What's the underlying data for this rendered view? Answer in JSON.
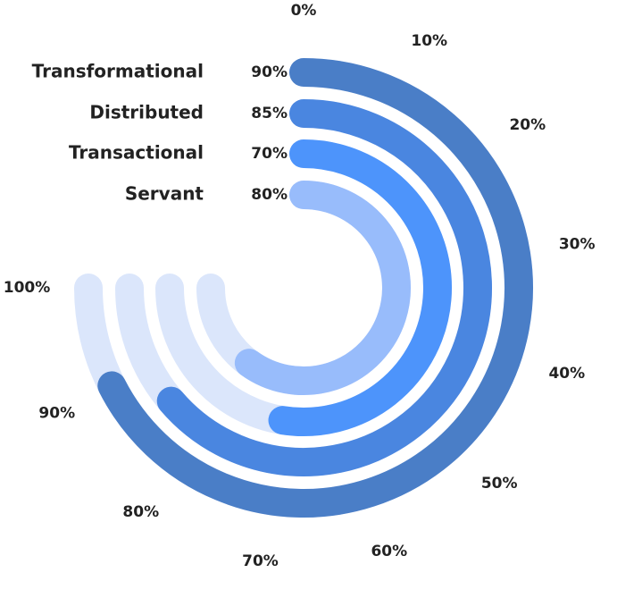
{
  "chart_data": {
    "type": "radial-bar",
    "categories": [
      "Transformational",
      "Distributed",
      "Transactional",
      "Servant"
    ],
    "values": [
      90,
      85,
      70,
      80
    ],
    "value_labels": [
      "90%",
      "85%",
      "70%",
      "80%"
    ],
    "colors": [
      "#4a7ec7",
      "#4a86e0",
      "#4d94fb",
      "#98bcfb"
    ],
    "track_color": "#dbe6fb",
    "xlim": [
      0,
      100
    ],
    "xticks": [
      {
        "value": 0,
        "label": "0%"
      },
      {
        "value": 10,
        "label": "10%"
      },
      {
        "value": 20,
        "label": "20%"
      },
      {
        "value": 30,
        "label": "30%"
      },
      {
        "value": 40,
        "label": "40%"
      },
      {
        "value": 50,
        "label": "50%"
      },
      {
        "value": 60,
        "label": "60%"
      },
      {
        "value": 70,
        "label": "70%"
      },
      {
        "value": 80,
        "label": "80%"
      },
      {
        "value": 90,
        "label": "90%"
      },
      {
        "value": 100,
        "label": "100%"
      }
    ]
  }
}
